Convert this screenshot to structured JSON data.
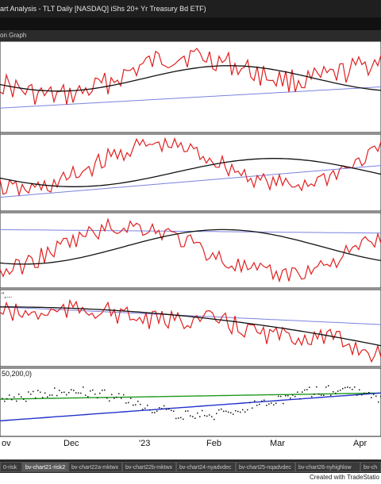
{
  "window": {
    "title": "art Analysis - TLT Daily [NASDAQ] iShs 20+ Yr Treasury Bd ETF)"
  },
  "menu": {
    "label": "on Graph"
  },
  "panels": [
    {
      "label": ""
    },
    {
      "label": ""
    },
    {
      "label": ""
    },
    {
      "label": "\",..."
    },
    {
      "label": "50,200,0)"
    }
  ],
  "x_axis": {
    "labels": [
      "ov",
      "Dec",
      "'23",
      "Feb",
      "Mar",
      "Apr"
    ]
  },
  "tabs": [
    {
      "label": "0-risk",
      "active": false
    },
    {
      "label": "bv-chart21-risk2",
      "active": true
    },
    {
      "label": "bv-chart22a-mktwx",
      "active": false
    },
    {
      "label": "bv-chart22b-mktwx",
      "active": false
    },
    {
      "label": "bv-chart24-nyadvdec",
      "active": false
    },
    {
      "label": "bv-chart25-nqadvdec",
      "active": false
    },
    {
      "label": "bv-chart26-nyhighlow",
      "active": false
    },
    {
      "label": "bv-ch",
      "active": false
    }
  ],
  "footer": {
    "text": "Created with TradeStatio"
  },
  "colors": {
    "price": "#e02020",
    "fast_ma": "#111111",
    "slow_ma": "#7b83e0",
    "green_ma": "#1e9a1e",
    "blue_ma": "#2233cc",
    "grid": "#8a8a8a"
  }
}
